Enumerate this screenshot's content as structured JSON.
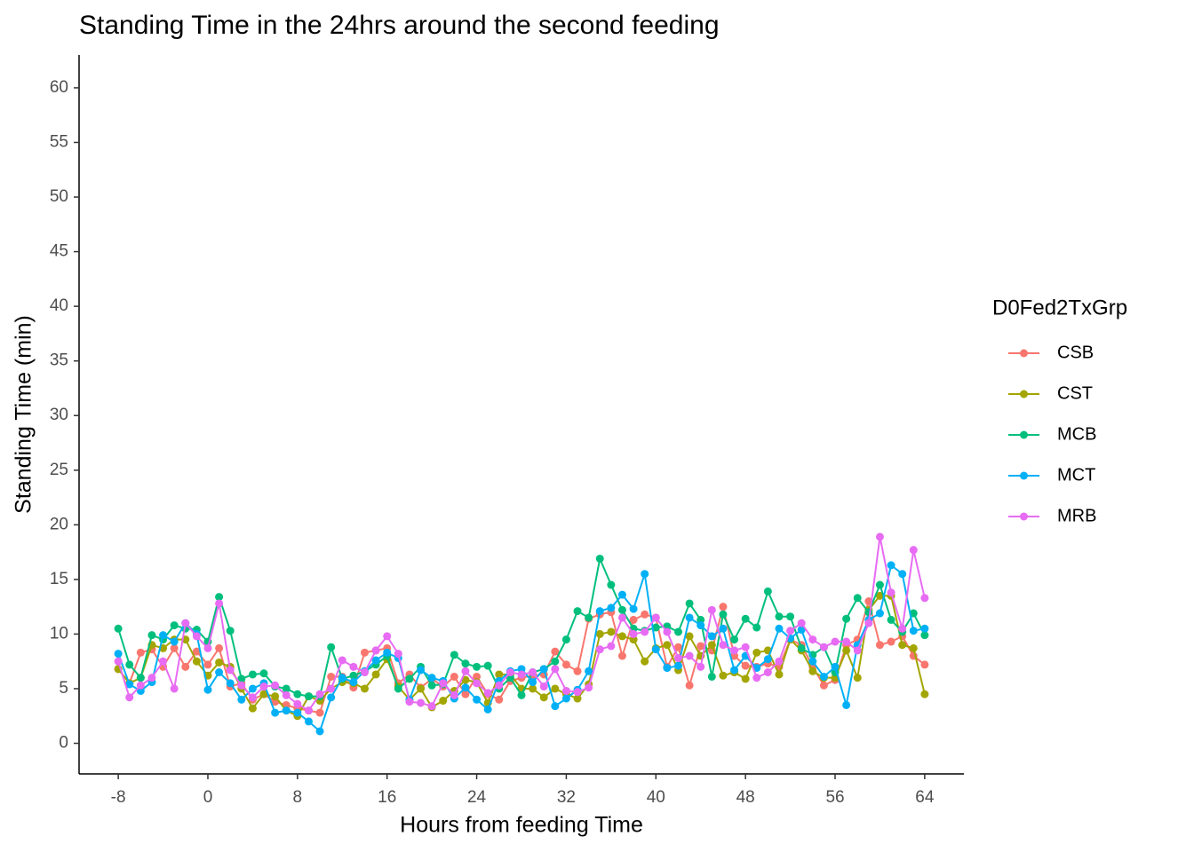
{
  "chart_data": {
    "type": "line",
    "title": "Standing Time in the 24hrs around the second feeding",
    "x_label": "Hours from feeding Time",
    "y_label": "Standing Time (min)",
    "legend_title": "D0Fed2TxGrp",
    "legend_position": "right",
    "grid": false,
    "x": [
      -8,
      -7,
      -6,
      -5,
      -4,
      -3,
      -2,
      -1,
      0,
      1,
      2,
      3,
      4,
      5,
      6,
      7,
      8,
      9,
      10,
      11,
      12,
      13,
      14,
      15,
      16,
      17,
      18,
      19,
      20,
      21,
      22,
      23,
      24,
      25,
      26,
      27,
      28,
      29,
      30,
      31,
      32,
      33,
      34,
      35,
      36,
      37,
      38,
      39,
      40,
      41,
      42,
      43,
      44,
      45,
      46,
      47,
      48,
      49,
      50,
      51,
      52,
      53,
      54,
      55,
      56,
      57,
      58,
      59,
      60,
      61,
      62,
      63,
      64
    ],
    "xlim": [
      -11.5,
      67.5
    ],
    "xticks": [
      -8,
      0,
      8,
      16,
      24,
      32,
      40,
      48,
      56,
      64
    ],
    "ylim": [
      -2.8,
      63
    ],
    "yticks": [
      0,
      5,
      10,
      15,
      20,
      25,
      30,
      35,
      40,
      45,
      50,
      55,
      60
    ],
    "series": [
      {
        "name": "CSB",
        "color": "#F8766D",
        "values": [
          6.8,
          5.5,
          8.3,
          8.6,
          7,
          8.7,
          7,
          8.4,
          7.2,
          8.7,
          5.2,
          5.5,
          4,
          4.5,
          3.8,
          3.5,
          3.2,
          3,
          2.8,
          6.1,
          6.1,
          5.1,
          8.3,
          8.5,
          8.7,
          5.5,
          6.3,
          5.1,
          5.9,
          5.2,
          6.1,
          4.5,
          6.1,
          4.5,
          4,
          5.7,
          6,
          6.2,
          6.3,
          8.4,
          7.2,
          6.6,
          11.4,
          11.8,
          12,
          8,
          11.3,
          11.8,
          11.5,
          7,
          8.8,
          5.3,
          8.9,
          8.5,
          12.5,
          8,
          7.1,
          7,
          7.3,
          7,
          9.5,
          9,
          7,
          5.3,
          5.8,
          9,
          9.5,
          13,
          9,
          9.3,
          9.8,
          8,
          7.2
        ]
      },
      {
        "name": "CST",
        "color": "#A3A500",
        "values": [
          6.8,
          5.5,
          6,
          9,
          8.7,
          9.5,
          9.5,
          7.5,
          6.2,
          7.4,
          7,
          5,
          3.2,
          4.5,
          4.3,
          3,
          2.5,
          4.3,
          3.9,
          5,
          5.6,
          5.5,
          5,
          6.3,
          7.7,
          5.2,
          4,
          5,
          3.3,
          3.9,
          4.8,
          5.8,
          5.6,
          3.7,
          6.3,
          6.3,
          5,
          5,
          4.2,
          5,
          4.5,
          4.1,
          5.4,
          10,
          10.2,
          9.8,
          9.5,
          7.5,
          8.7,
          9,
          6.7,
          9.8,
          8,
          9,
          6.2,
          6.5,
          5.9,
          8.3,
          8.5,
          6.3,
          9.5,
          8.5,
          6.6,
          6,
          6,
          8.5,
          6,
          12.2,
          13.5,
          13.5,
          9,
          8.7,
          4.5
        ]
      },
      {
        "name": "MCB",
        "color": "#00BF7D",
        "values": [
          10.5,
          7.2,
          6,
          9.9,
          9.5,
          10.8,
          10.5,
          10.4,
          9.3,
          13.4,
          10.3,
          5.9,
          6.3,
          6.4,
          5.2,
          5,
          4.5,
          4.3,
          4.3,
          8.8,
          5.9,
          6.2,
          6.6,
          7.2,
          8,
          5,
          5.9,
          7,
          5.3,
          5.4,
          8.1,
          7.3,
          7,
          7.1,
          5,
          6,
          4.4,
          6.5,
          6.8,
          7.5,
          9.5,
          12.1,
          11.5,
          16.9,
          14.5,
          12.2,
          10.5,
          10.3,
          10.6,
          10.7,
          10.2,
          12.8,
          11.3,
          6.1,
          11.8,
          9.5,
          11.4,
          10.6,
          13.9,
          11.6,
          11.6,
          8.7,
          8.1,
          8.8,
          6.5,
          11.4,
          13.3,
          12,
          14.5,
          11.3,
          10.2,
          11.9,
          9.9
        ]
      },
      {
        "name": "MCT",
        "color": "#00B0F6",
        "values": [
          8.2,
          5.4,
          4.8,
          5.6,
          9.9,
          9.3,
          11,
          10,
          4.9,
          6.5,
          5.5,
          4,
          5,
          5.5,
          2.8,
          3,
          2.8,
          2,
          1.1,
          4.2,
          6,
          5.6,
          6.6,
          7.6,
          8.3,
          7.8,
          4,
          6.7,
          6,
          5.7,
          4.1,
          5.1,
          4,
          3.1,
          5.7,
          6.6,
          6.8,
          5.6,
          6.8,
          3.4,
          4.1,
          4.9,
          6.6,
          12.1,
          12.4,
          13.6,
          12.3,
          15.5,
          8.6,
          6.9,
          7.1,
          11.5,
          10.8,
          9.8,
          10.5,
          6.7,
          8,
          6.9,
          7.7,
          10.5,
          9.6,
          10.4,
          7.5,
          6.1,
          7,
          3.5,
          9,
          11.3,
          11.9,
          16.3,
          15.5,
          10.3,
          10.5
        ]
      },
      {
        "name": "MRB",
        "color": "#E76BF3",
        "values": [
          7.5,
          4.2,
          5.3,
          6,
          7.5,
          5,
          11,
          9.8,
          8.7,
          12.8,
          6.7,
          5.3,
          4.2,
          5.2,
          5.3,
          4.4,
          3.6,
          3,
          4.5,
          5,
          7.6,
          7,
          6.5,
          8.5,
          9.8,
          8.2,
          3.8,
          3.7,
          3.4,
          5.5,
          4.4,
          6.6,
          5.5,
          4.6,
          5.3,
          6.5,
          6.3,
          6.5,
          5.2,
          6.8,
          4.8,
          4.7,
          5.1,
          8.6,
          8.9,
          11.5,
          10,
          10.2,
          11.5,
          10.2,
          7.8,
          8,
          7,
          12.2,
          9,
          8.5,
          8.8,
          6,
          6.5,
          7.5,
          10.3,
          11,
          9.5,
          8.8,
          9.3,
          9.3,
          8.5,
          11,
          18.9,
          13.8,
          10.5,
          17.7,
          13.3
        ]
      }
    ]
  }
}
